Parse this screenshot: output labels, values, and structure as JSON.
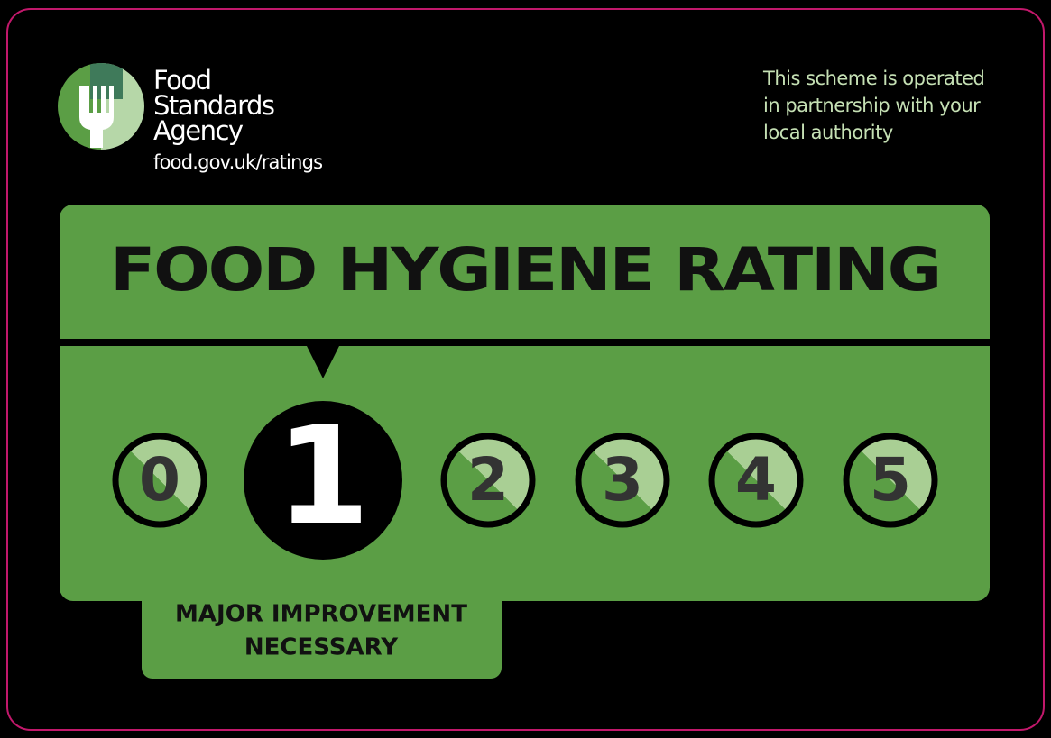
{
  "logo": {
    "lines": [
      "Food",
      "Standards",
      "Agency"
    ],
    "url": "food.gov.uk/ratings"
  },
  "partnership": [
    "This scheme is operated",
    "in partnership with your",
    "local authority"
  ],
  "title": "FOOD HYGIENE RATING",
  "ratings": [
    "0",
    "1",
    "2",
    "3",
    "4",
    "5"
  ],
  "selected": 1,
  "status": [
    "MAJOR IMPROVEMENT",
    "NECESSARY"
  ]
}
